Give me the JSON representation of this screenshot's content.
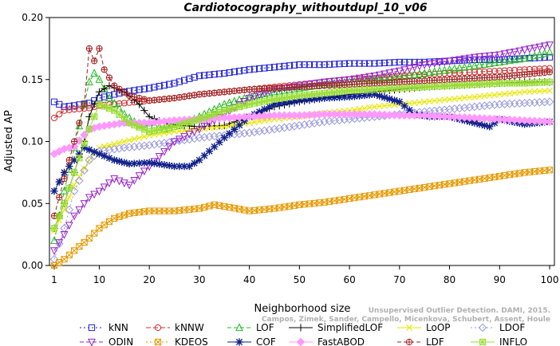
{
  "chart_data": {
    "type": "line",
    "title": "Cardiotocography_withoutdupl_10_v06",
    "xlabel": "Neighborhood size",
    "ylabel": "Adjusted AP",
    "xlim": [
      1,
      100
    ],
    "ylim": [
      0,
      0.2
    ],
    "x_ticks": [
      1,
      10,
      20,
      30,
      40,
      50,
      60,
      70,
      80,
      90,
      100
    ],
    "y_ticks": [
      "0.00",
      "0.05",
      "0.10",
      "0.15",
      "0.20"
    ],
    "legend_position": "bottom",
    "watermark": [
      "Unsupervised Outlier Detection. DAMI, 2015.",
      "Campos, Zimek, Sander, Campello, Micenkova, Schubert, Assent, Houle"
    ],
    "series": [
      {
        "name": "kNN",
        "color": "#1f1fd6",
        "marker": "square",
        "dash": "2,3",
        "points": [
          [
            1,
            0.132
          ],
          [
            3,
            0.128
          ],
          [
            5,
            0.129
          ],
          [
            8,
            0.131
          ],
          [
            10,
            0.135
          ],
          [
            15,
            0.14
          ],
          [
            20,
            0.143
          ],
          [
            25,
            0.147
          ],
          [
            30,
            0.153
          ],
          [
            35,
            0.155
          ],
          [
            40,
            0.158
          ],
          [
            45,
            0.16
          ],
          [
            50,
            0.162
          ],
          [
            55,
            0.162
          ],
          [
            60,
            0.163
          ],
          [
            65,
            0.163
          ],
          [
            70,
            0.164
          ],
          [
            75,
            0.164
          ],
          [
            80,
            0.165
          ],
          [
            85,
            0.166
          ],
          [
            90,
            0.166
          ],
          [
            95,
            0.167
          ],
          [
            100,
            0.168
          ]
        ]
      },
      {
        "name": "kNNW",
        "color": "#d42a2a",
        "marker": "circle",
        "dash": "6,3",
        "points": [
          [
            1,
            0.119
          ],
          [
            3,
            0.125
          ],
          [
            5,
            0.126
          ],
          [
            8,
            0.127
          ],
          [
            10,
            0.129
          ],
          [
            15,
            0.131
          ],
          [
            20,
            0.133
          ],
          [
            25,
            0.135
          ],
          [
            30,
            0.138
          ],
          [
            35,
            0.14
          ],
          [
            40,
            0.142
          ],
          [
            45,
            0.144
          ],
          [
            50,
            0.146
          ],
          [
            55,
            0.148
          ],
          [
            60,
            0.15
          ],
          [
            65,
            0.151
          ],
          [
            70,
            0.153
          ],
          [
            75,
            0.154
          ],
          [
            80,
            0.155
          ],
          [
            85,
            0.156
          ],
          [
            90,
            0.157
          ],
          [
            95,
            0.158
          ],
          [
            100,
            0.159
          ]
        ]
      },
      {
        "name": "LOF",
        "color": "#22bb22",
        "marker": "triangle",
        "dash": "5,3",
        "points": [
          [
            1,
            0.02
          ],
          [
            3,
            0.06
          ],
          [
            5,
            0.095
          ],
          [
            7,
            0.13
          ],
          [
            8,
            0.148
          ],
          [
            9,
            0.155
          ],
          [
            10,
            0.15
          ],
          [
            12,
            0.135
          ],
          [
            15,
            0.122
          ],
          [
            18,
            0.113
          ],
          [
            20,
            0.115
          ],
          [
            23,
            0.11
          ],
          [
            26,
            0.113
          ],
          [
            30,
            0.12
          ],
          [
            35,
            0.13
          ],
          [
            40,
            0.136
          ],
          [
            45,
            0.14
          ],
          [
            50,
            0.143
          ],
          [
            55,
            0.146
          ],
          [
            60,
            0.148
          ],
          [
            65,
            0.15
          ],
          [
            70,
            0.152
          ],
          [
            75,
            0.155
          ],
          [
            80,
            0.158
          ],
          [
            85,
            0.161
          ],
          [
            90,
            0.164
          ],
          [
            95,
            0.167
          ],
          [
            100,
            0.172
          ]
        ]
      },
      {
        "name": "SimplifiedLOF",
        "color": "#000000",
        "marker": "plus",
        "dash": "",
        "points": [
          [
            1,
            0.03
          ],
          [
            3,
            0.05
          ],
          [
            5,
            0.075
          ],
          [
            7,
            0.1
          ],
          [
            8,
            0.12
          ],
          [
            10,
            0.14
          ],
          [
            12,
            0.145
          ],
          [
            15,
            0.14
          ],
          [
            18,
            0.13
          ],
          [
            20,
            0.12
          ],
          [
            23,
            0.115
          ],
          [
            26,
            0.113
          ],
          [
            30,
            0.112
          ],
          [
            35,
            0.113
          ],
          [
            40,
            0.12
          ],
          [
            45,
            0.128
          ],
          [
            50,
            0.132
          ],
          [
            55,
            0.135
          ],
          [
            60,
            0.138
          ],
          [
            65,
            0.14
          ],
          [
            70,
            0.142
          ],
          [
            75,
            0.144
          ],
          [
            80,
            0.145
          ],
          [
            85,
            0.146
          ],
          [
            90,
            0.147
          ],
          [
            95,
            0.148
          ],
          [
            100,
            0.148
          ]
        ]
      },
      {
        "name": "LoOP",
        "color": "#e6e600",
        "marker": "cross",
        "dash": "",
        "points": [
          [
            1,
            0.028
          ],
          [
            3,
            0.045
          ],
          [
            5,
            0.065
          ],
          [
            8,
            0.085
          ],
          [
            10,
            0.095
          ],
          [
            15,
            0.1
          ],
          [
            20,
            0.105
          ],
          [
            25,
            0.108
          ],
          [
            30,
            0.11
          ],
          [
            35,
            0.112
          ],
          [
            40,
            0.115
          ],
          [
            45,
            0.118
          ],
          [
            50,
            0.12
          ],
          [
            55,
            0.123
          ],
          [
            60,
            0.125
          ],
          [
            65,
            0.128
          ],
          [
            70,
            0.13
          ],
          [
            75,
            0.132
          ],
          [
            80,
            0.134
          ],
          [
            85,
            0.136
          ],
          [
            90,
            0.138
          ],
          [
            95,
            0.14
          ],
          [
            100,
            0.141
          ]
        ]
      },
      {
        "name": "LDOF",
        "color": "#9999dd",
        "marker": "diamond",
        "dash": "2,3",
        "points": [
          [
            1,
            0.005
          ],
          [
            3,
            0.03
          ],
          [
            5,
            0.06
          ],
          [
            8,
            0.085
          ],
          [
            10,
            0.092
          ],
          [
            15,
            0.095
          ],
          [
            20,
            0.097
          ],
          [
            25,
            0.1
          ],
          [
            30,
            0.103
          ],
          [
            35,
            0.105
          ],
          [
            40,
            0.107
          ],
          [
            45,
            0.11
          ],
          [
            50,
            0.113
          ],
          [
            55,
            0.116
          ],
          [
            60,
            0.118
          ],
          [
            65,
            0.12
          ],
          [
            70,
            0.122
          ],
          [
            75,
            0.124
          ],
          [
            80,
            0.126
          ],
          [
            85,
            0.128
          ],
          [
            90,
            0.13
          ],
          [
            95,
            0.131
          ],
          [
            100,
            0.132
          ]
        ]
      },
      {
        "name": "ODIN",
        "color": "#9922cc",
        "marker": "tri-down",
        "dash": "5,3",
        "points": [
          [
            1,
            0.012
          ],
          [
            3,
            0.025
          ],
          [
            5,
            0.04
          ],
          [
            8,
            0.055
          ],
          [
            10,
            0.06
          ],
          [
            13,
            0.07
          ],
          [
            16,
            0.065
          ],
          [
            20,
            0.08
          ],
          [
            25,
            0.1
          ],
          [
            30,
            0.11
          ],
          [
            35,
            0.122
          ],
          [
            40,
            0.135
          ],
          [
            45,
            0.142
          ],
          [
            50,
            0.145
          ],
          [
            55,
            0.148
          ],
          [
            60,
            0.15
          ],
          [
            65,
            0.153
          ],
          [
            70,
            0.157
          ],
          [
            75,
            0.162
          ],
          [
            80,
            0.165
          ],
          [
            85,
            0.168
          ],
          [
            90,
            0.17
          ],
          [
            95,
            0.174
          ],
          [
            100,
            0.178
          ]
        ]
      },
      {
        "name": "KDEOS",
        "color": "#e69900",
        "marker": "square-x",
        "dash": "2,3",
        "points": [
          [
            1,
            0.0
          ],
          [
            3,
            0.005
          ],
          [
            5,
            0.012
          ],
          [
            8,
            0.022
          ],
          [
            10,
            0.03
          ],
          [
            13,
            0.038
          ],
          [
            16,
            0.042
          ],
          [
            20,
            0.044
          ],
          [
            25,
            0.044
          ],
          [
            30,
            0.046
          ],
          [
            33,
            0.049
          ],
          [
            36,
            0.047
          ],
          [
            40,
            0.044
          ],
          [
            45,
            0.046
          ],
          [
            50,
            0.049
          ],
          [
            55,
            0.051
          ],
          [
            60,
            0.054
          ],
          [
            65,
            0.057
          ],
          [
            70,
            0.06
          ],
          [
            75,
            0.063
          ],
          [
            80,
            0.066
          ],
          [
            85,
            0.069
          ],
          [
            90,
            0.072
          ],
          [
            95,
            0.075
          ],
          [
            100,
            0.077
          ]
        ]
      },
      {
        "name": "COF",
        "color": "#10208a",
        "marker": "asterisk",
        "dash": "",
        "points": [
          [
            1,
            0.06
          ],
          [
            3,
            0.075
          ],
          [
            5,
            0.085
          ],
          [
            7,
            0.095
          ],
          [
            10,
            0.09
          ],
          [
            13,
            0.085
          ],
          [
            16,
            0.082
          ],
          [
            20,
            0.083
          ],
          [
            25,
            0.08
          ],
          [
            28,
            0.08
          ],
          [
            30,
            0.085
          ],
          [
            35,
            0.103
          ],
          [
            40,
            0.12
          ],
          [
            45,
            0.13
          ],
          [
            50,
            0.133
          ],
          [
            55,
            0.135
          ],
          [
            60,
            0.136
          ],
          [
            65,
            0.138
          ],
          [
            70,
            0.132
          ],
          [
            73,
            0.122
          ],
          [
            76,
            0.12
          ],
          [
            80,
            0.12
          ],
          [
            85,
            0.115
          ],
          [
            88,
            0.112
          ],
          [
            90,
            0.118
          ],
          [
            95,
            0.114
          ],
          [
            100,
            0.116
          ]
        ]
      },
      {
        "name": "FastABOD",
        "color": "#ff99ff",
        "marker": "diamond-filled",
        "dash": "",
        "points": [
          [
            1,
            0.09
          ],
          [
            3,
            0.094
          ],
          [
            5,
            0.096
          ],
          [
            8,
            0.11
          ],
          [
            10,
            0.112
          ],
          [
            15,
            0.115
          ],
          [
            20,
            0.115
          ],
          [
            25,
            0.117
          ],
          [
            30,
            0.118
          ],
          [
            35,
            0.119
          ],
          [
            40,
            0.12
          ],
          [
            45,
            0.121
          ],
          [
            50,
            0.121
          ],
          [
            55,
            0.122
          ],
          [
            60,
            0.122
          ],
          [
            65,
            0.122
          ],
          [
            70,
            0.121
          ],
          [
            75,
            0.121
          ],
          [
            80,
            0.12
          ],
          [
            85,
            0.119
          ],
          [
            90,
            0.118
          ],
          [
            95,
            0.117
          ],
          [
            100,
            0.116
          ]
        ]
      },
      {
        "name": "LDF",
        "color": "#a02020",
        "marker": "circle-plus",
        "dash": "5,3",
        "points": [
          [
            1,
            0.04
          ],
          [
            3,
            0.07
          ],
          [
            5,
            0.1
          ],
          [
            7,
            0.13
          ],
          [
            8,
            0.175
          ],
          [
            9,
            0.165
          ],
          [
            10,
            0.175
          ],
          [
            11,
            0.158
          ],
          [
            13,
            0.145
          ],
          [
            16,
            0.137
          ],
          [
            20,
            0.133
          ],
          [
            25,
            0.135
          ],
          [
            30,
            0.138
          ],
          [
            35,
            0.14
          ],
          [
            40,
            0.142
          ],
          [
            45,
            0.143
          ],
          [
            50,
            0.144
          ],
          [
            55,
            0.145
          ],
          [
            60,
            0.146
          ],
          [
            65,
            0.147
          ],
          [
            70,
            0.148
          ],
          [
            75,
            0.149
          ],
          [
            80,
            0.15
          ],
          [
            85,
            0.151
          ],
          [
            90,
            0.152
          ],
          [
            95,
            0.154
          ],
          [
            100,
            0.156
          ]
        ]
      },
      {
        "name": "INFLO",
        "color": "#99dd33",
        "marker": "square-asterisk",
        "dash": "",
        "points": [
          [
            1,
            0.03
          ],
          [
            3,
            0.05
          ],
          [
            5,
            0.075
          ],
          [
            8,
            0.11
          ],
          [
            10,
            0.13
          ],
          [
            13,
            0.125
          ],
          [
            16,
            0.115
          ],
          [
            20,
            0.108
          ],
          [
            25,
            0.112
          ],
          [
            30,
            0.118
          ],
          [
            35,
            0.125
          ],
          [
            40,
            0.13
          ],
          [
            45,
            0.134
          ],
          [
            50,
            0.137
          ],
          [
            55,
            0.139
          ],
          [
            60,
            0.141
          ],
          [
            65,
            0.142
          ],
          [
            70,
            0.143
          ],
          [
            75,
            0.144
          ],
          [
            80,
            0.145
          ],
          [
            85,
            0.146
          ],
          [
            90,
            0.147
          ],
          [
            95,
            0.147
          ],
          [
            100,
            0.148
          ]
        ]
      }
    ]
  }
}
